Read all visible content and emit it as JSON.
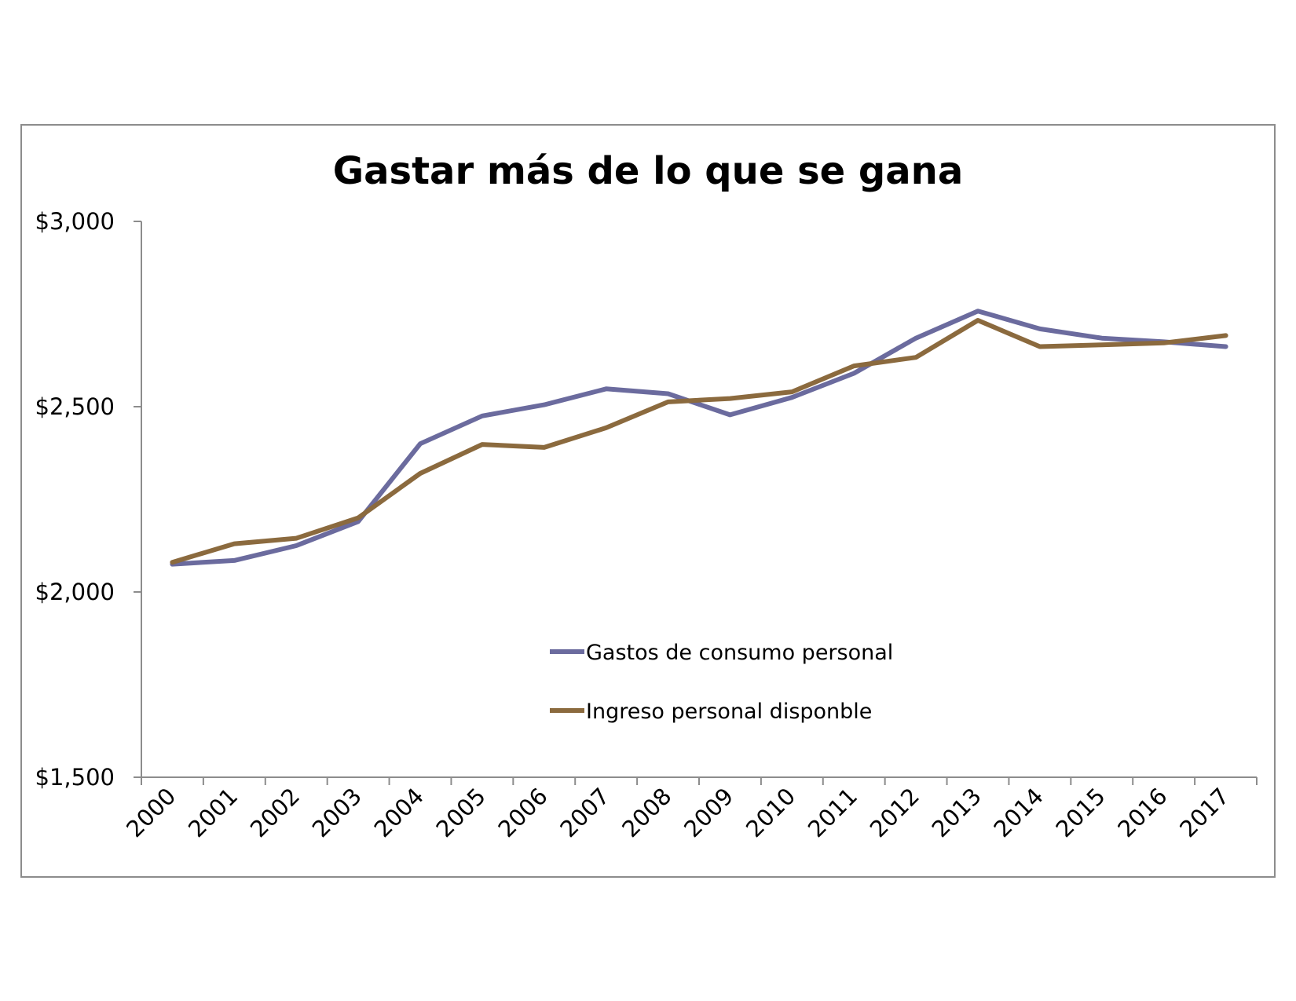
{
  "chart_data": {
    "type": "line",
    "title": "Gastar más de lo que se gana",
    "xlabel": "",
    "ylabel": "",
    "categories": [
      "2000",
      "2001",
      "2002",
      "2003",
      "2004",
      "2005",
      "2006",
      "2007",
      "2008",
      "2009",
      "2010",
      "2011",
      "2012",
      "2013",
      "2014",
      "2015",
      "2016",
      "2017"
    ],
    "ylim": [
      1500,
      3000
    ],
    "yticks": [
      1500,
      2000,
      2500,
      3000
    ],
    "ytick_labels": [
      "$1,500",
      "$2,000",
      "$2,500",
      "$3,000"
    ],
    "grid": false,
    "legend": "center-right",
    "series": [
      {
        "name": "Gastos de consumo personal",
        "color": "#6b6b9e",
        "values": [
          2075,
          2085,
          2125,
          2190,
          2400,
          2475,
          2505,
          2548,
          2535,
          2478,
          2525,
          2590,
          2685,
          2758,
          2710,
          2685,
          2675,
          2662
        ]
      },
      {
        "name": "Ingreso personal disponble",
        "color": "#8b6a3e",
        "values": [
          2080,
          2130,
          2145,
          2200,
          2320,
          2398,
          2390,
          2443,
          2513,
          2522,
          2540,
          2610,
          2633,
          2733,
          2662,
          2667,
          2672,
          2692
        ]
      }
    ]
  }
}
